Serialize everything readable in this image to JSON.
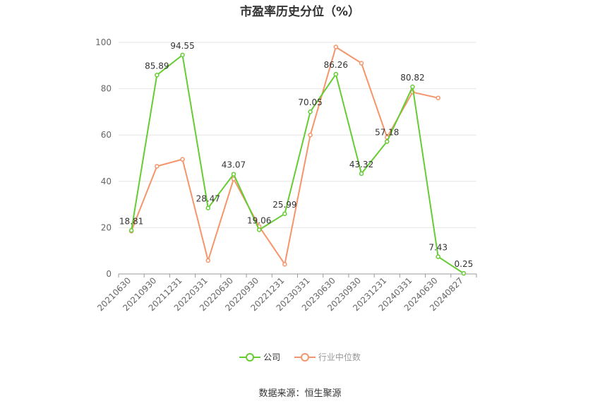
{
  "title": "市盈率历史分位（%）",
  "source": "数据来源：恒生聚源",
  "colors": {
    "company": "#66cc33",
    "industry": "#f5956a",
    "grid": "#e6e6e6",
    "axis": "#999999"
  },
  "chart_data": {
    "type": "line",
    "title": "市盈率历史分位（%）",
    "xlabel": "",
    "ylabel": "",
    "ylim": [
      0,
      100
    ],
    "yticks": [
      0,
      20,
      40,
      60,
      80,
      100
    ],
    "grid": true,
    "legend_position": "bottom",
    "categories": [
      "20210630",
      "20210930",
      "20211231",
      "20220331",
      "20220630",
      "20220930",
      "20221231",
      "20230331",
      "20230630",
      "20230930",
      "20231231",
      "20240331",
      "20240630",
      "20240827"
    ],
    "series": [
      {
        "name": "公司",
        "color": "#66cc33",
        "values": [
          18.81,
          85.89,
          94.55,
          28.47,
          43.07,
          19.06,
          25.99,
          70.05,
          86.26,
          43.32,
          57.18,
          80.82,
          7.43,
          0.25
        ],
        "labels": [
          "18.81",
          "85.89",
          "94.55",
          "28.47",
          "43.07",
          "19.06",
          "25.99",
          "70.05",
          "86.26",
          "43.32",
          "57.18",
          "80.82",
          "7.43",
          "0.25"
        ]
      },
      {
        "name": "行业中位数",
        "color": "#f5956a",
        "values": [
          18.5,
          46.5,
          49.5,
          5.8,
          41.0,
          20.5,
          4.2,
          60.0,
          98.0,
          91.0,
          59.0,
          78.5,
          76.0,
          null
        ]
      }
    ]
  }
}
